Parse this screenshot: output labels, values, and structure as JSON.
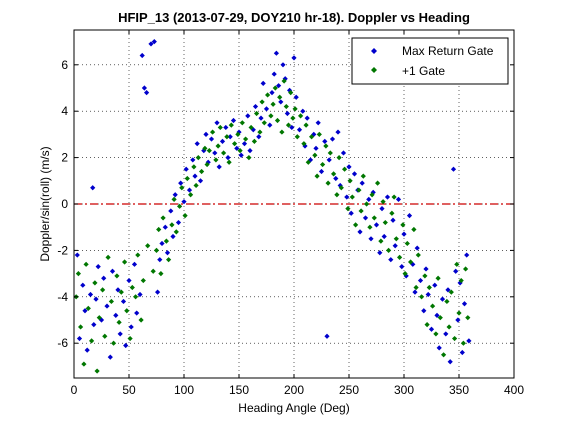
{
  "chart_data": {
    "type": "scatter",
    "title": "HFIP_13 (2013-07-29, DOY210 hr-18).  Doppler vs Heading",
    "xlabel": "Heading Angle (Deg)",
    "ylabel": "Doppler/sin(roll) (m/s)",
    "xlim": [
      0,
      400
    ],
    "ylim": [
      -7.5,
      7.5
    ],
    "xticks": [
      0,
      50,
      100,
      150,
      200,
      250,
      300,
      350,
      400
    ],
    "yticks": [
      -6,
      -4,
      -2,
      0,
      2,
      4,
      6
    ],
    "grid": true,
    "legend_position": "top-right",
    "reference_line": {
      "y": 0,
      "color": "#cc0000",
      "style": "dash-dot"
    },
    "series": [
      {
        "name": "Max Return Gate",
        "color": "#0000cc",
        "marker": "diamond",
        "points": [
          [
            3,
            -2.2
          ],
          [
            5,
            -5.8
          ],
          [
            8,
            -3.5
          ],
          [
            10,
            -4.6
          ],
          [
            12,
            -6.3
          ],
          [
            15,
            -3.9
          ],
          [
            17,
            0.7
          ],
          [
            18,
            -5.2
          ],
          [
            20,
            -4.1
          ],
          [
            22,
            -2.7
          ],
          [
            25,
            -5.0
          ],
          [
            27,
            -3.2
          ],
          [
            30,
            -4.4
          ],
          [
            33,
            -6.6
          ],
          [
            35,
            -2.9
          ],
          [
            38,
            -4.8
          ],
          [
            40,
            -3.7
          ],
          [
            42,
            -5.6
          ],
          [
            45,
            -4.2
          ],
          [
            47,
            -6.1
          ],
          [
            50,
            -3.3
          ],
          [
            52,
            -5.3
          ],
          [
            55,
            -2.6
          ],
          [
            57,
            -4.7
          ],
          [
            60,
            -3.9
          ],
          [
            62,
            6.4
          ],
          [
            64,
            5.0
          ],
          [
            66,
            4.8
          ],
          [
            70,
            6.9
          ],
          [
            73,
            7.0
          ],
          [
            76,
            -3.8
          ],
          [
            78,
            -2.4
          ],
          [
            80,
            -1.7
          ],
          [
            83,
            -1.0
          ],
          [
            85,
            -2.1
          ],
          [
            88,
            -0.3
          ],
          [
            90,
            -1.4
          ],
          [
            92,
            0.4
          ],
          [
            95,
            -0.8
          ],
          [
            97,
            0.9
          ],
          [
            100,
            0.1
          ],
          [
            102,
            1.5
          ],
          [
            105,
            0.6
          ],
          [
            108,
            1.9
          ],
          [
            110,
            1.2
          ],
          [
            112,
            2.6
          ],
          [
            115,
            1.0
          ],
          [
            118,
            2.3
          ],
          [
            120,
            3.0
          ],
          [
            122,
            1.8
          ],
          [
            125,
            2.8
          ],
          [
            128,
            2.2
          ],
          [
            130,
            3.5
          ],
          [
            132,
            1.6
          ],
          [
            135,
            2.7
          ],
          [
            138,
            3.3
          ],
          [
            140,
            2.0
          ],
          [
            142,
            2.9
          ],
          [
            145,
            3.6
          ],
          [
            148,
            2.4
          ],
          [
            150,
            3.1
          ],
          [
            152,
            2.1
          ],
          [
            155,
            2.6
          ],
          [
            158,
            3.8
          ],
          [
            160,
            2.3
          ],
          [
            163,
            3.2
          ],
          [
            165,
            4.2
          ],
          [
            168,
            2.9
          ],
          [
            170,
            3.7
          ],
          [
            172,
            5.2
          ],
          [
            175,
            4.1
          ],
          [
            178,
            3.4
          ],
          [
            180,
            4.8
          ],
          [
            182,
            5.6
          ],
          [
            184,
            6.5
          ],
          [
            186,
            5.1
          ],
          [
            188,
            4.4
          ],
          [
            190,
            6.0
          ],
          [
            192,
            5.4
          ],
          [
            194,
            3.9
          ],
          [
            196,
            4.9
          ],
          [
            198,
            3.3
          ],
          [
            200,
            6.3
          ],
          [
            202,
            4.6
          ],
          [
            205,
            3.2
          ],
          [
            208,
            4.0
          ],
          [
            210,
            2.5
          ],
          [
            212,
            3.7
          ],
          [
            215,
            1.9
          ],
          [
            218,
            3.0
          ],
          [
            220,
            2.4
          ],
          [
            222,
            3.5
          ],
          [
            225,
            1.4
          ],
          [
            228,
            2.7
          ],
          [
            230,
            -5.7
          ],
          [
            232,
            1.9
          ],
          [
            235,
            2.8
          ],
          [
            238,
            1.1
          ],
          [
            240,
            3.1
          ],
          [
            242,
            0.8
          ],
          [
            245,
            2.2
          ],
          [
            248,
            0.3
          ],
          [
            250,
            1.6
          ],
          [
            252,
            -0.4
          ],
          [
            255,
            1.3
          ],
          [
            258,
            0.6
          ],
          [
            260,
            -1.2
          ],
          [
            262,
            0.9
          ],
          [
            265,
            -0.6
          ],
          [
            268,
            0.2
          ],
          [
            270,
            -1.5
          ],
          [
            272,
            0.5
          ],
          [
            275,
            -0.9
          ],
          [
            278,
            -2.1
          ],
          [
            280,
            -0.2
          ],
          [
            282,
            -1.4
          ],
          [
            285,
            0.3
          ],
          [
            288,
            -2.4
          ],
          [
            290,
            -0.7
          ],
          [
            292,
            -1.8
          ],
          [
            295,
            0.2
          ],
          [
            298,
            -2.7
          ],
          [
            300,
            -1.3
          ],
          [
            302,
            -3.1
          ],
          [
            305,
            -0.5
          ],
          [
            308,
            -2.6
          ],
          [
            310,
            -3.8
          ],
          [
            312,
            -1.9
          ],
          [
            315,
            -3.3
          ],
          [
            318,
            -4.6
          ],
          [
            320,
            -2.8
          ],
          [
            322,
            -3.9
          ],
          [
            325,
            -5.4
          ],
          [
            328,
            -3.5
          ],
          [
            330,
            -4.8
          ],
          [
            332,
            -6.2
          ],
          [
            335,
            -4.1
          ],
          [
            338,
            -5.6
          ],
          [
            340,
            -3.7
          ],
          [
            342,
            -6.8
          ],
          [
            345,
            1.5
          ],
          [
            347,
            -2.9
          ],
          [
            349,
            -5.0
          ],
          [
            351,
            -3.4
          ],
          [
            353,
            -6.4
          ],
          [
            355,
            -4.3
          ],
          [
            357,
            -2.2
          ],
          [
            359,
            -5.9
          ]
        ]
      },
      {
        "name": "+1 Gate",
        "color": "#007700",
        "marker": "diamond",
        "points": [
          [
            2,
            -4.0
          ],
          [
            4,
            -3.0
          ],
          [
            6,
            -5.3
          ],
          [
            9,
            -6.9
          ],
          [
            11,
            -2.6
          ],
          [
            13,
            -4.5
          ],
          [
            16,
            -5.9
          ],
          [
            19,
            -3.4
          ],
          [
            21,
            -7.2
          ],
          [
            23,
            -4.9
          ],
          [
            26,
            -3.7
          ],
          [
            28,
            -5.7
          ],
          [
            31,
            -2.3
          ],
          [
            34,
            -4.2
          ],
          [
            36,
            -6.0
          ],
          [
            39,
            -3.1
          ],
          [
            41,
            -5.1
          ],
          [
            43,
            -3.8
          ],
          [
            46,
            -2.5
          ],
          [
            48,
            -4.6
          ],
          [
            51,
            -5.8
          ],
          [
            53,
            -3.6
          ],
          [
            56,
            -4.0
          ],
          [
            58,
            -2.2
          ],
          [
            61,
            -5.0
          ],
          [
            63,
            -3.3
          ],
          [
            67,
            -1.8
          ],
          [
            72,
            -2.9
          ],
          [
            75,
            -2.0
          ],
          [
            77,
            -1.1
          ],
          [
            79,
            -3.0
          ],
          [
            81,
            -0.6
          ],
          [
            84,
            -1.6
          ],
          [
            86,
            -2.4
          ],
          [
            89,
            -0.9
          ],
          [
            91,
            0.2
          ],
          [
            93,
            -1.2
          ],
          [
            96,
            -0.1
          ],
          [
            98,
            0.7
          ],
          [
            101,
            -0.5
          ],
          [
            103,
            1.1
          ],
          [
            106,
            0.4
          ],
          [
            109,
            1.6
          ],
          [
            111,
            0.8
          ],
          [
            113,
            2.0
          ],
          [
            116,
            1.4
          ],
          [
            119,
            2.4
          ],
          [
            121,
            1.7
          ],
          [
            123,
            2.3
          ],
          [
            126,
            3.1
          ],
          [
            129,
            1.9
          ],
          [
            131,
            2.5
          ],
          [
            133,
            3.3
          ],
          [
            136,
            2.2
          ],
          [
            139,
            2.9
          ],
          [
            141,
            1.8
          ],
          [
            143,
            3.4
          ],
          [
            146,
            2.6
          ],
          [
            149,
            3.0
          ],
          [
            151,
            2.3
          ],
          [
            153,
            3.5
          ],
          [
            156,
            2.8
          ],
          [
            159,
            2.0
          ],
          [
            161,
            3.3
          ],
          [
            164,
            2.7
          ],
          [
            166,
            3.9
          ],
          [
            169,
            3.1
          ],
          [
            171,
            4.4
          ],
          [
            173,
            3.5
          ],
          [
            176,
            4.7
          ],
          [
            179,
            3.8
          ],
          [
            181,
            4.3
          ],
          [
            183,
            5.0
          ],
          [
            185,
            3.6
          ],
          [
            187,
            4.6
          ],
          [
            189,
            3.1
          ],
          [
            191,
            5.3
          ],
          [
            193,
            4.2
          ],
          [
            195,
            3.4
          ],
          [
            197,
            4.8
          ],
          [
            199,
            3.7
          ],
          [
            201,
            4.1
          ],
          [
            203,
            2.9
          ],
          [
            206,
            3.8
          ],
          [
            209,
            2.6
          ],
          [
            211,
            3.4
          ],
          [
            213,
            1.8
          ],
          [
            216,
            2.9
          ],
          [
            219,
            2.1
          ],
          [
            221,
            1.2
          ],
          [
            223,
            3.0
          ],
          [
            226,
            1.7
          ],
          [
            229,
            2.5
          ],
          [
            231,
            0.9
          ],
          [
            233,
            2.2
          ],
          [
            236,
            1.3
          ],
          [
            239,
            0.4
          ],
          [
            241,
            2.0
          ],
          [
            243,
            0.7
          ],
          [
            246,
            1.5
          ],
          [
            249,
            -0.2
          ],
          [
            251,
            1.0
          ],
          [
            253,
            0.3
          ],
          [
            256,
            -0.9
          ],
          [
            259,
            0.6
          ],
          [
            261,
            -0.3
          ],
          [
            263,
            1.2
          ],
          [
            266,
            0.0
          ],
          [
            269,
            -1.0
          ],
          [
            271,
            0.4
          ],
          [
            273,
            -0.6
          ],
          [
            276,
            0.9
          ],
          [
            279,
            -1.6
          ],
          [
            281,
            0.1
          ],
          [
            283,
            -0.8
          ],
          [
            286,
            -2.0
          ],
          [
            289,
            -0.4
          ],
          [
            291,
            0.3
          ],
          [
            293,
            -1.5
          ],
          [
            296,
            -2.3
          ],
          [
            299,
            -0.9
          ],
          [
            301,
            -3.0
          ],
          [
            303,
            -1.7
          ],
          [
            306,
            -2.5
          ],
          [
            309,
            -1.1
          ],
          [
            311,
            -3.6
          ],
          [
            313,
            -2.2
          ],
          [
            316,
            -4.0
          ],
          [
            319,
            -3.1
          ],
          [
            321,
            -5.2
          ],
          [
            323,
            -3.6
          ],
          [
            326,
            -4.4
          ],
          [
            329,
            -5.6
          ],
          [
            331,
            -3.2
          ],
          [
            333,
            -4.9
          ],
          [
            336,
            -6.5
          ],
          [
            339,
            -4.2
          ],
          [
            341,
            -5.3
          ],
          [
            343,
            -3.8
          ],
          [
            346,
            -5.8
          ],
          [
            348,
            -2.6
          ],
          [
            350,
            -4.7
          ],
          [
            352,
            -3.3
          ],
          [
            354,
            -6.0
          ],
          [
            356,
            -2.8
          ],
          [
            358,
            -4.9
          ]
        ]
      }
    ]
  }
}
